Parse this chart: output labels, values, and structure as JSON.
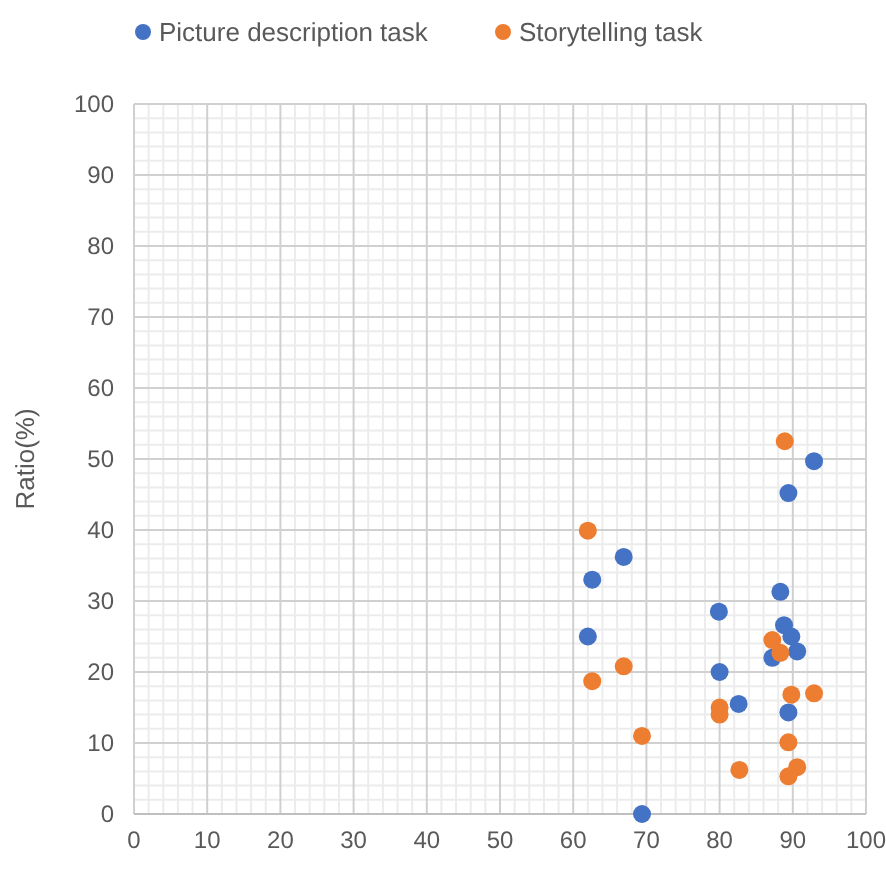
{
  "chart_data": {
    "type": "scatter",
    "ylabel": "Ratio(%)",
    "xlim": [
      0,
      100
    ],
    "ylim": [
      0,
      100
    ],
    "xticks": [
      0,
      10,
      20,
      30,
      40,
      50,
      60,
      70,
      80,
      90,
      100
    ],
    "yticks": [
      0,
      10,
      20,
      30,
      40,
      50,
      60,
      70,
      80,
      90,
      100
    ],
    "grid": true,
    "legend": "top",
    "marker": "circle",
    "series": [
      {
        "name": "Picture description task",
        "color": "#4472c4",
        "x": [
          62.6,
          62.0,
          66.9,
          69.4,
          79.9,
          80.0,
          82.6,
          88.3,
          88.8,
          89.8,
          87.2,
          90.6,
          89.4,
          89.4,
          92.9
        ],
        "values": [
          33.0,
          25.0,
          36.2,
          0,
          28.5,
          20.0,
          15.5,
          31.3,
          26.6,
          25.0,
          22.0,
          22.9,
          14.3,
          45.2,
          49.7
        ]
      },
      {
        "name": "Storytelling task",
        "color": "#ed7d31",
        "x": [
          62.0,
          62.6,
          66.9,
          69.4,
          80.0,
          80.0,
          82.7,
          88.9,
          87.2,
          88.3,
          89.8,
          92.9,
          89.4,
          89.4,
          90.6
        ],
        "values": [
          39.9,
          18.7,
          20.8,
          11.0,
          15.0,
          14.0,
          6.2,
          52.5,
          24.5,
          22.7,
          16.8,
          17.0,
          10.1,
          5.3,
          6.6
        ]
      }
    ]
  }
}
